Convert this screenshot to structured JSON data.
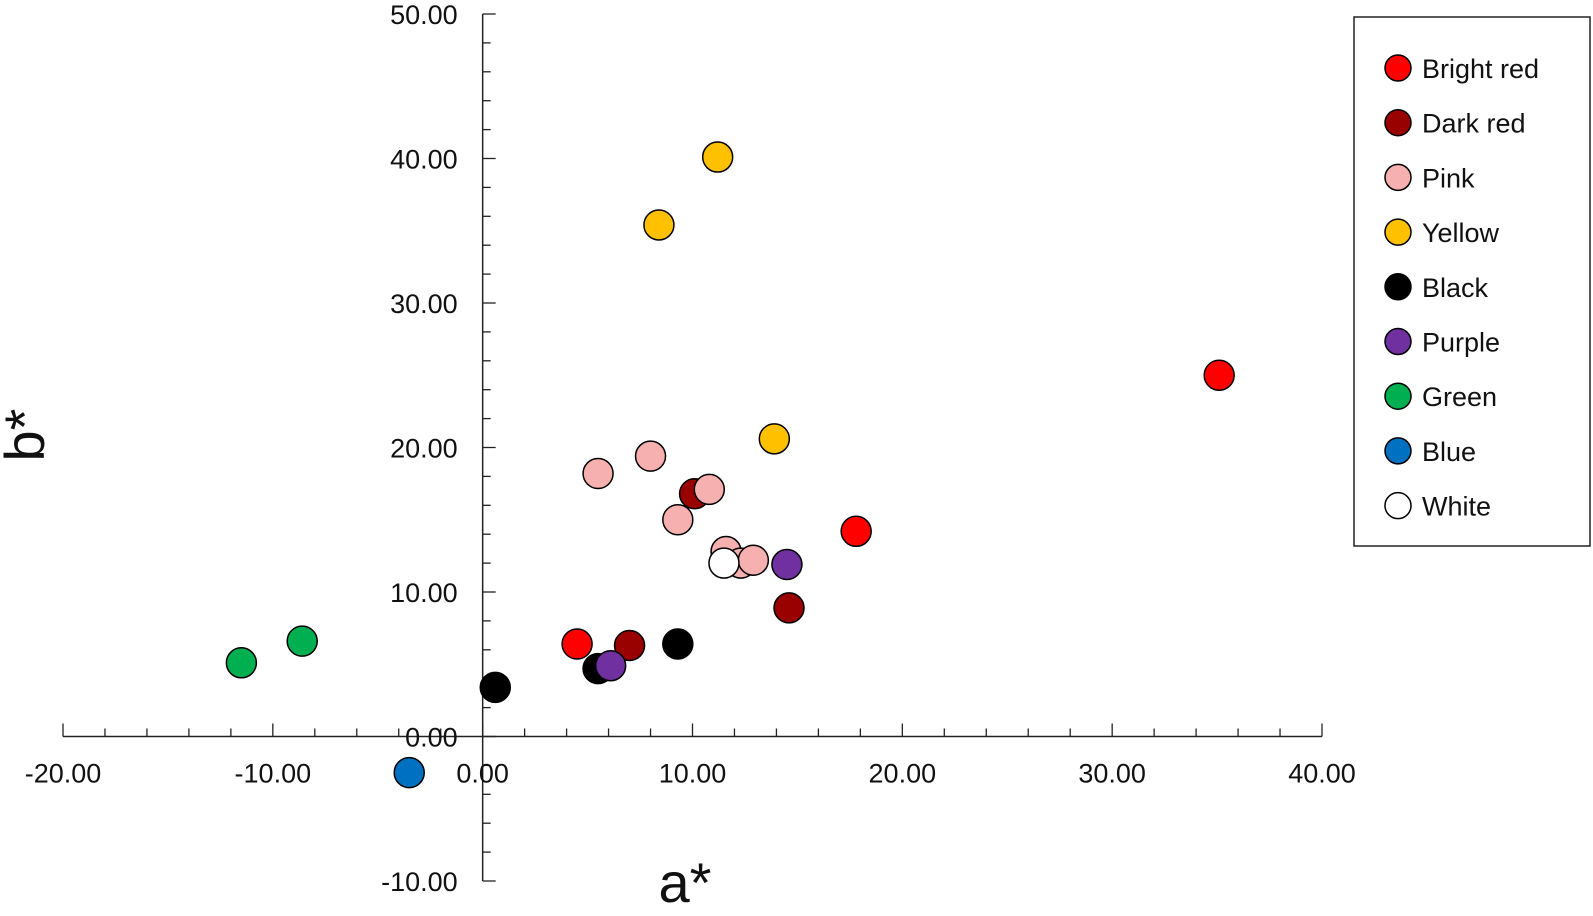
{
  "chart_data": {
    "type": "scatter",
    "xlabel": "a*",
    "ylabel": "b*",
    "xlim": [
      -20,
      40
    ],
    "ylim": [
      -10,
      50
    ],
    "x_ticks": [
      "-20.00",
      "-10.00",
      "0.00",
      "10.00",
      "20.00",
      "30.00",
      "40.00"
    ],
    "y_ticks": [
      "-10.00",
      "0.00",
      "10.00",
      "20.00",
      "30.00",
      "40.00",
      "50.00"
    ],
    "x_tick_values": [
      -20,
      -10,
      0,
      10,
      20,
      30,
      40
    ],
    "y_tick_values": [
      -10,
      0,
      10,
      20,
      30,
      40,
      50
    ],
    "grid": false,
    "legend_position": "top-right",
    "series": [
      {
        "name": "Bright red",
        "color": "#ff0000",
        "points": [
          [
            35.1,
            25.0
          ],
          [
            17.8,
            14.2
          ],
          [
            4.5,
            6.4
          ]
        ]
      },
      {
        "name": "Dark red",
        "color": "#990000",
        "points": [
          [
            10.1,
            16.8
          ],
          [
            14.6,
            8.9
          ],
          [
            7.0,
            6.3
          ]
        ]
      },
      {
        "name": "Pink",
        "color": "#f7b0b0",
        "points": [
          [
            5.5,
            18.2
          ],
          [
            8.0,
            19.4
          ],
          [
            10.8,
            17.1
          ],
          [
            9.3,
            15.0
          ],
          [
            11.6,
            12.8
          ],
          [
            12.3,
            12.0
          ],
          [
            12.9,
            12.2
          ]
        ]
      },
      {
        "name": "Yellow",
        "color": "#ffc000",
        "points": [
          [
            11.2,
            40.1
          ],
          [
            8.4,
            35.4
          ],
          [
            13.9,
            20.6
          ]
        ]
      },
      {
        "name": "Black",
        "color": "#000000",
        "points": [
          [
            0.6,
            3.4
          ],
          [
            5.5,
            4.7
          ],
          [
            9.3,
            6.4
          ]
        ]
      },
      {
        "name": "Purple",
        "color": "#7030a0",
        "points": [
          [
            6.1,
            4.9
          ],
          [
            14.5,
            11.9
          ]
        ]
      },
      {
        "name": "Green",
        "color": "#00b050",
        "points": [
          [
            -11.5,
            5.1
          ],
          [
            -8.6,
            6.6
          ]
        ]
      },
      {
        "name": "Blue",
        "color": "#0070c0",
        "points": [
          [
            -3.5,
            -2.5
          ]
        ]
      },
      {
        "name": "White",
        "color": "#ffffff",
        "points": [
          [
            11.5,
            12.0
          ]
        ]
      }
    ]
  }
}
